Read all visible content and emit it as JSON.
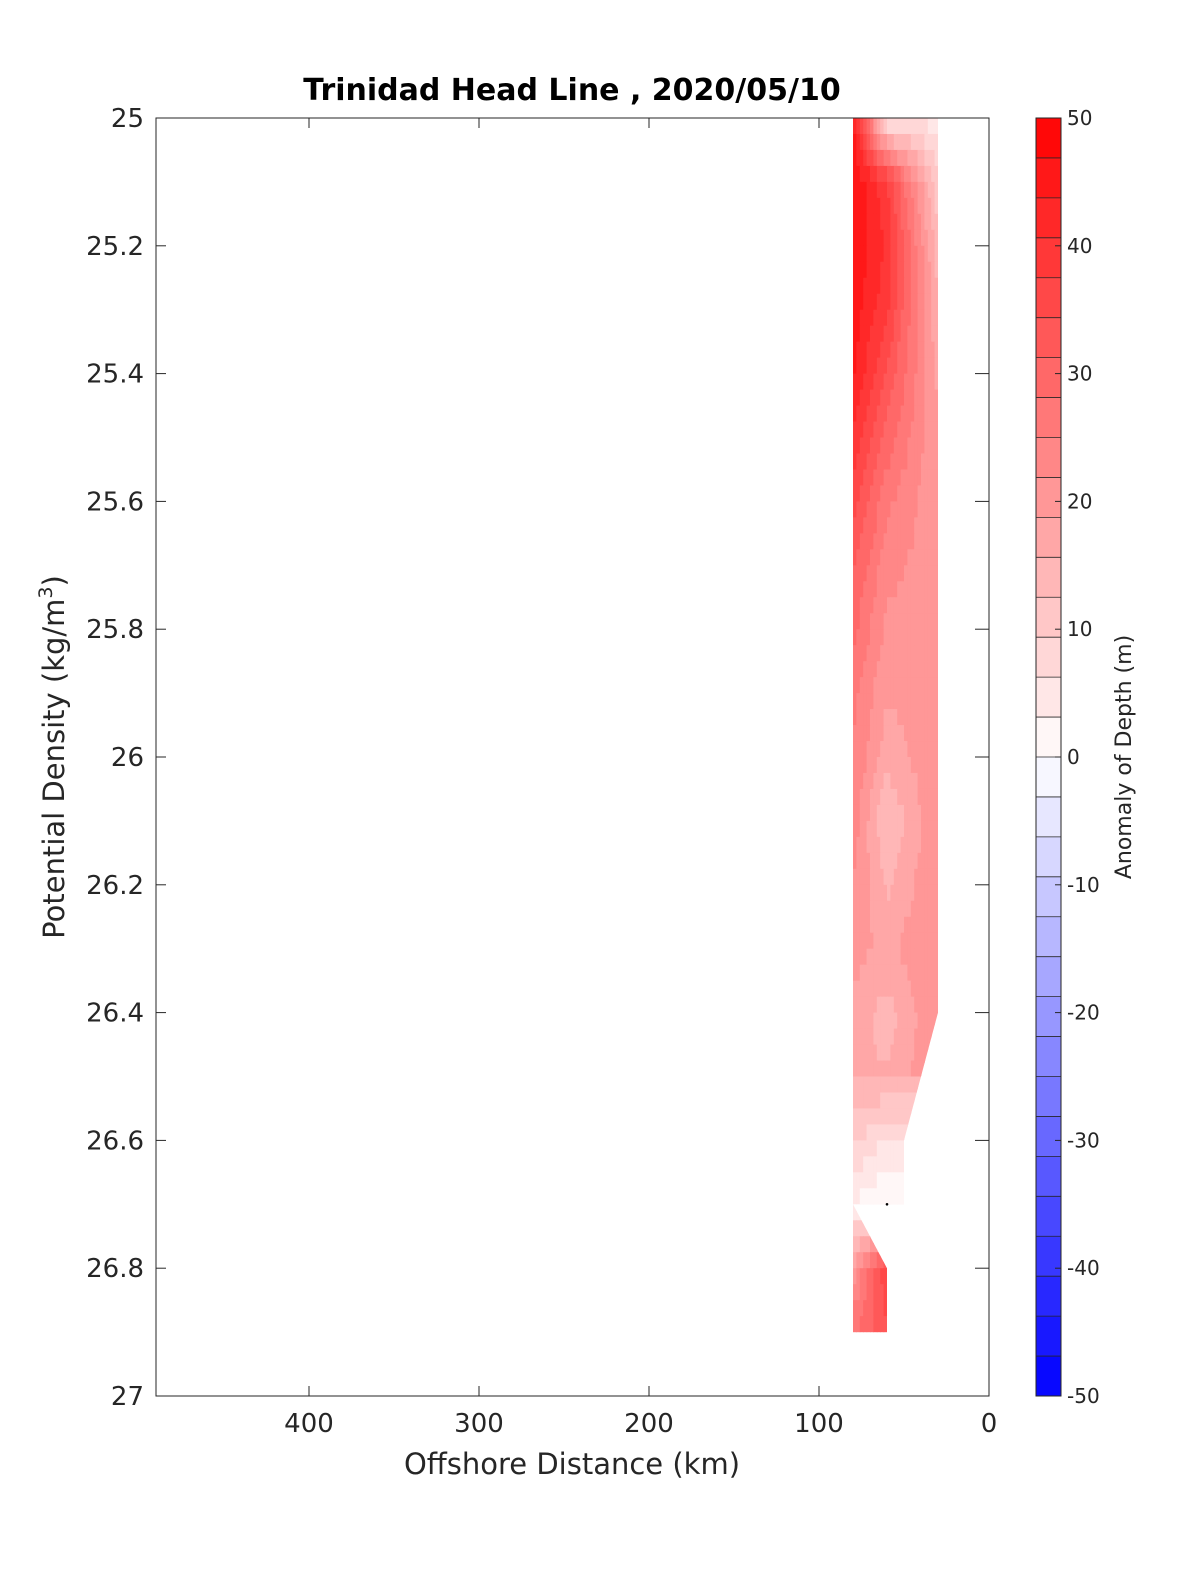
{
  "chart_data": {
    "type": "heatmap",
    "title": "Trinidad Head Line , 2020/05/10",
    "xlabel": "Offshore Distance (km)",
    "ylabel": "Potential Density (kg/m",
    "ylabel_sup": "3",
    "ylabel_close": ")",
    "xlim": [
      490,
      0
    ],
    "ylim": [
      27,
      25
    ],
    "x_reversed": true,
    "y_reversed": true,
    "xticks": [
      400,
      300,
      200,
      100,
      0
    ],
    "yticks": [
      25,
      25.2,
      25.4,
      25.6,
      25.8,
      26,
      26.2,
      26.4,
      26.6,
      26.8,
      27
    ],
    "colorbar": {
      "label": "Anomaly of Depth (m)",
      "range": [
        -50,
        50
      ],
      "ticks": [
        50,
        40,
        30,
        20,
        10,
        0,
        -10,
        -20,
        -30,
        -40,
        -50
      ],
      "levels": 32,
      "colors": {
        "negative": "#0000ff",
        "zero": "#ffffff",
        "positive": "#ff0000"
      }
    },
    "grid": false,
    "stations_km": [
      80,
      60,
      30
    ],
    "data_extent": {
      "outer_km": [
        80,
        80,
        80,
        60,
        60,
        80
      ],
      "outer_density": [
        25,
        26.7,
        26.9,
        26.9,
        26.8,
        26.7
      ],
      "coastal_km": [
        30,
        30,
        50,
        50
      ],
      "coastal_density": [
        25,
        26.4,
        26.6,
        26.7
      ]
    },
    "anomaly_field": {
      "density": [
        25.0,
        25.1,
        25.2,
        25.3,
        25.4,
        25.5,
        25.6,
        25.7,
        25.8,
        25.9,
        26.0,
        26.1,
        26.2,
        26.3,
        26.4,
        26.5,
        26.6,
        26.7,
        26.8,
        26.9
      ],
      "at_80km": [
        45,
        47,
        47,
        46,
        44,
        40,
        36,
        32,
        29,
        26,
        25,
        24,
        22,
        20,
        18,
        16,
        10,
        3,
        20,
        28
      ],
      "at_60km": [
        5,
        38,
        40,
        38,
        34,
        30,
        26,
        23,
        21,
        19,
        17,
        12,
        15,
        18,
        14,
        16,
        6,
        0,
        38,
        33
      ],
      "at_30km": [
        5,
        10,
        14,
        16,
        18,
        19,
        19,
        20,
        20,
        21,
        21,
        22,
        22,
        22,
        22,
        null,
        null,
        null,
        null,
        null
      ]
    }
  }
}
